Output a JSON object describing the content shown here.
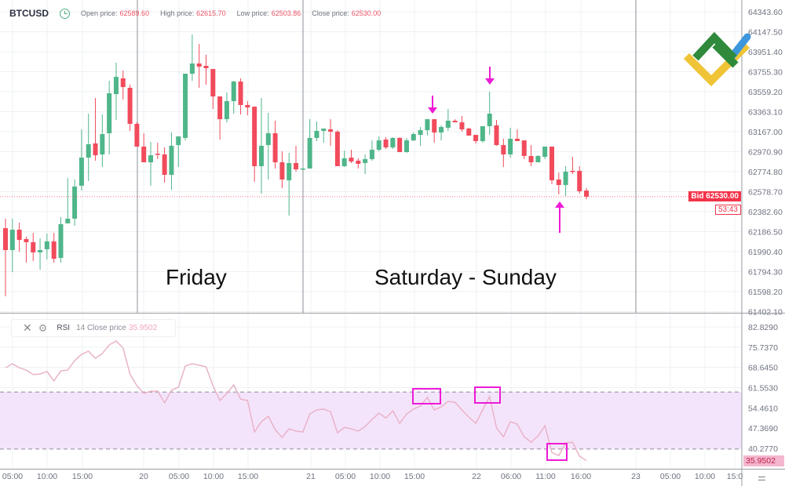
{
  "header": {
    "symbol": "BTCUSD",
    "open_label": "Open price:",
    "open_value": "62589.60",
    "high_label": "High price:",
    "high_value": "62615.70",
    "low_label": "Low price:",
    "low_value": "62503.86",
    "close_label": "Close price:",
    "close_value": "62530.00"
  },
  "annotations": {
    "friday": "Friday",
    "weekend": "Saturday - Sunday"
  },
  "bid": {
    "label": "Bid 62530.00",
    "countdown": "53:43"
  },
  "rsi_legend": {
    "name": "RSI",
    "params": "14 Close price",
    "value": "35.9502"
  },
  "colors": {
    "up": "#4fb68a",
    "down": "#f14b5c",
    "rsi_line": "#e9b3c9",
    "rsi_band": "#f4e4fb",
    "annotation": "#ee1ad6",
    "bid": "#f4344a"
  },
  "chart_data": [
    {
      "type": "candlestick",
      "title": "BTCUSD",
      "price_axis_ticks": [
        "64343.60",
        "64147.50",
        "63951.40",
        "63755.30",
        "63559.20",
        "63363.10",
        "63167.00",
        "62970.90",
        "62774.80",
        "62578.70",
        "62382.60",
        "62186.50",
        "61990.40",
        "61794.30",
        "61598.20",
        "61402.10"
      ],
      "ylim": [
        61391,
        64459
      ],
      "time_axis_ticks": [
        "05:00",
        "10:00",
        "15:00",
        "20",
        "05:00",
        "10:00",
        "15:00",
        "21",
        "05:00",
        "10:00",
        "15:00",
        "22",
        "06:00",
        "11:00",
        "16:00",
        "23",
        "05:00",
        "10:00",
        "15:0"
      ],
      "grid": true,
      "current_price": 62530.0,
      "ohlc": [
        [
          62221,
          62314,
          61552,
          62006
        ],
        [
          62006,
          62314,
          61790,
          62206
        ],
        [
          62206,
          62275,
          61990,
          62106
        ],
        [
          62114,
          62137,
          61883,
          62083
        ],
        [
          62083,
          62175,
          61898,
          61983
        ],
        [
          61983,
          62121,
          61813,
          62006
        ],
        [
          62014,
          62168,
          61914,
          62091
        ],
        [
          62091,
          62175,
          61883,
          61921
        ],
        [
          61929,
          62329,
          61883,
          62260
        ],
        [
          62268,
          62714,
          62268,
          62314
        ],
        [
          62314,
          62698,
          62245,
          62629
        ],
        [
          62637,
          63190,
          62590,
          62913
        ],
        [
          62913,
          63344,
          62683,
          63044
        ],
        [
          63052,
          63498,
          62883,
          62936
        ],
        [
          62944,
          63336,
          62821,
          63144
        ],
        [
          63152,
          63667,
          62944,
          63544
        ],
        [
          63536,
          63844,
          63282,
          63705
        ],
        [
          63690,
          63767,
          63482,
          63605
        ],
        [
          63598,
          63628,
          63175,
          63244
        ],
        [
          63244,
          63260,
          63021,
          63021
        ],
        [
          63021,
          63152,
          62867,
          62867
        ],
        [
          62867,
          63067,
          62637,
          62936
        ],
        [
          62952,
          63059,
          62898,
          62944
        ],
        [
          62944,
          63013,
          62667,
          62744
        ],
        [
          62744,
          63159,
          62598,
          63029
        ],
        [
          63036,
          63121,
          62821,
          63121
        ],
        [
          63106,
          63736,
          63082,
          63736
        ],
        [
          63736,
          64121,
          63667,
          63836
        ],
        [
          63836,
          64028,
          63598,
          63805
        ],
        [
          63813,
          63921,
          63628,
          63790
        ],
        [
          63782,
          63782,
          63390,
          63513
        ],
        [
          63513,
          63513,
          63090,
          63290
        ],
        [
          63290,
          63552,
          63259,
          63467
        ],
        [
          63467,
          63667,
          63344,
          63659
        ],
        [
          63659,
          63690,
          63336,
          63429
        ],
        [
          63429,
          63467,
          63329,
          63405
        ],
        [
          63413,
          63413,
          62675,
          62829
        ],
        [
          62829,
          63498,
          62560,
          63029
        ],
        [
          63036,
          63352,
          62698,
          63152
        ],
        [
          63152,
          63275,
          62806,
          62867
        ],
        [
          62867,
          62975,
          62613,
          62698
        ],
        [
          62690,
          62960,
          62344,
          62860
        ],
        [
          62860,
          63029,
          62775,
          62798
        ],
        [
          62806,
          62813,
          62798,
          62806
        ],
        [
          62806,
          63290,
          62806,
          63106
        ],
        [
          63106,
          63267,
          63075,
          63175
        ],
        [
          63175,
          63198,
          63059,
          63198
        ],
        [
          63190,
          63290,
          63029,
          63167
        ],
        [
          63167,
          63182,
          62829,
          62829
        ],
        [
          62829,
          62983,
          62821,
          62906
        ],
        [
          62913,
          62990,
          62860,
          62875
        ],
        [
          62883,
          62906,
          62806,
          62852
        ],
        [
          62860,
          62944,
          62752,
          62898
        ],
        [
          62898,
          63082,
          62883,
          62990
        ],
        [
          62990,
          63121,
          62975,
          63082
        ],
        [
          63090,
          63113,
          62998,
          63013
        ],
        [
          63013,
          63113,
          62998,
          63106
        ],
        [
          63106,
          63113,
          62967,
          62967
        ],
        [
          62967,
          63106,
          62960,
          63082
        ],
        [
          63082,
          63159,
          63075,
          63144
        ],
        [
          63136,
          63213,
          63029,
          63182
        ],
        [
          63182,
          63290,
          63129,
          63290
        ],
        [
          63290,
          63290,
          63059,
          63159
        ],
        [
          63159,
          63229,
          63082,
          63213
        ],
        [
          63206,
          63390,
          63175,
          63275
        ],
        [
          63275,
          63290,
          63259,
          63259
        ],
        [
          63259,
          63321,
          63167,
          63190
        ],
        [
          63198,
          63206,
          63129,
          63129
        ],
        [
          63136,
          63136,
          63052,
          63075
        ],
        [
          63075,
          63221,
          63059,
          63221
        ],
        [
          63221,
          63559,
          63136,
          63344
        ],
        [
          63229,
          63282,
          63029,
          63036
        ],
        [
          63036,
          63098,
          62821,
          62944
        ],
        [
          62944,
          63206,
          62913,
          63098
        ],
        [
          63098,
          63190,
          63075,
          63075
        ],
        [
          63082,
          63082,
          62898,
          62929
        ],
        [
          62929,
          63036,
          62829,
          62867
        ],
        [
          62867,
          62937,
          62867,
          62929
        ],
        [
          62921,
          63021,
          62898,
          63021
        ],
        [
          63021,
          63021,
          62652,
          62690
        ],
        [
          62698,
          62767,
          62552,
          62644
        ],
        [
          62644,
          62829,
          62536,
          62775
        ],
        [
          62783,
          62921,
          62752,
          62775
        ],
        [
          62783,
          62829,
          62560,
          62583
        ],
        [
          62589.6,
          62615.7,
          62503.86,
          62530.0
        ]
      ]
    },
    {
      "type": "line",
      "title": "RSI 14 Close price",
      "axis_ticks": [
        "82.8290",
        "75.7370",
        "68.6450",
        "61.5530",
        "54.4610",
        "47.3690",
        "40.2770"
      ],
      "ylim": [
        33.1,
        87.5
      ],
      "bands": [
        40,
        60
      ],
      "current_value": 35.9502,
      "values": [
        68.5,
        69.9,
        68.5,
        67.7,
        66.1,
        66.3,
        67.2,
        63.9,
        67.4,
        67.7,
        71.0,
        73.2,
        74.3,
        71.8,
        73.5,
        76.5,
        77.9,
        75.4,
        66.3,
        62.2,
        59.5,
        60.3,
        60.3,
        56.2,
        60.6,
        61.7,
        69.1,
        69.9,
        69.4,
        68.8,
        62.2,
        57.0,
        59.5,
        62.5,
        57.5,
        57.0,
        46.0,
        49.6,
        51.5,
        46.8,
        44.1,
        47.1,
        46.3,
        46.0,
        52.3,
        53.7,
        54.0,
        53.1,
        45.7,
        47.6,
        47.1,
        46.3,
        47.9,
        50.4,
        52.6,
        50.9,
        53.4,
        49.0,
        52.3,
        54.0,
        55.1,
        58.1,
        53.7,
        54.8,
        56.7,
        56.4,
        53.7,
        51.2,
        49.0,
        53.7,
        58.4,
        47.4,
        44.3,
        49.6,
        48.7,
        44.3,
        42.4,
        44.6,
        48.2,
        38.8,
        37.7,
        42.1,
        42.4,
        37.5,
        35.95
      ]
    }
  ]
}
